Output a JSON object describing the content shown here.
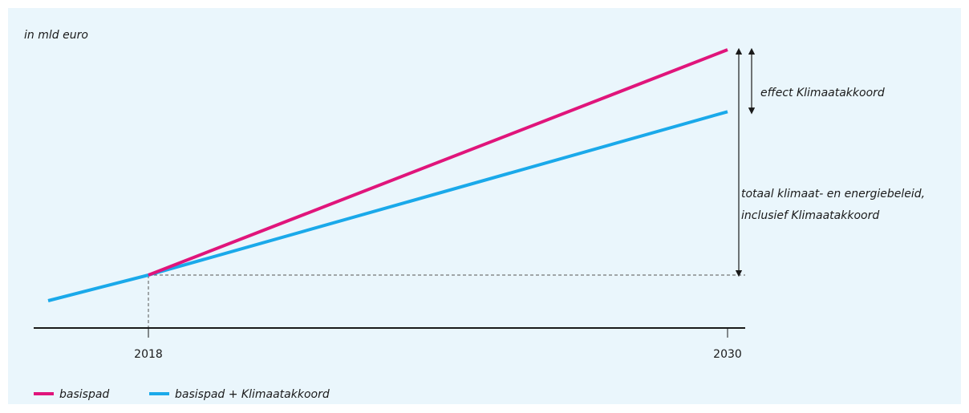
{
  "chart_data": {
    "type": "line",
    "unit_label": "in mld euro",
    "x": [
      "2018",
      "2030"
    ],
    "series": [
      {
        "name": "basispad",
        "color": "#e0157b",
        "values": [
          0,
          100
        ]
      },
      {
        "name": "basispad + Klimaatakkoord",
        "color": "#1aa9ea",
        "values": [
          0,
          72.5
        ]
      }
    ],
    "pre_2018_trend": {
      "series": "basispad + Klimaatakkoord",
      "description_visible": false
    },
    "annotations": [
      {
        "name": "effect",
        "lines": [
          "effect Klimaatakkoord"
        ]
      },
      {
        "name": "total",
        "lines": [
          "totaal klimaat- en energiebeleid,",
          "inclusief Klimaatakkoord"
        ]
      }
    ],
    "legend": {
      "position": "bottom-left",
      "entries": [
        "basispad",
        "basispad + Klimaatakkoord"
      ]
    },
    "colors": {
      "background": "#eaf6fc",
      "axis": "#1a1a1a",
      "guides": "#555555"
    }
  }
}
